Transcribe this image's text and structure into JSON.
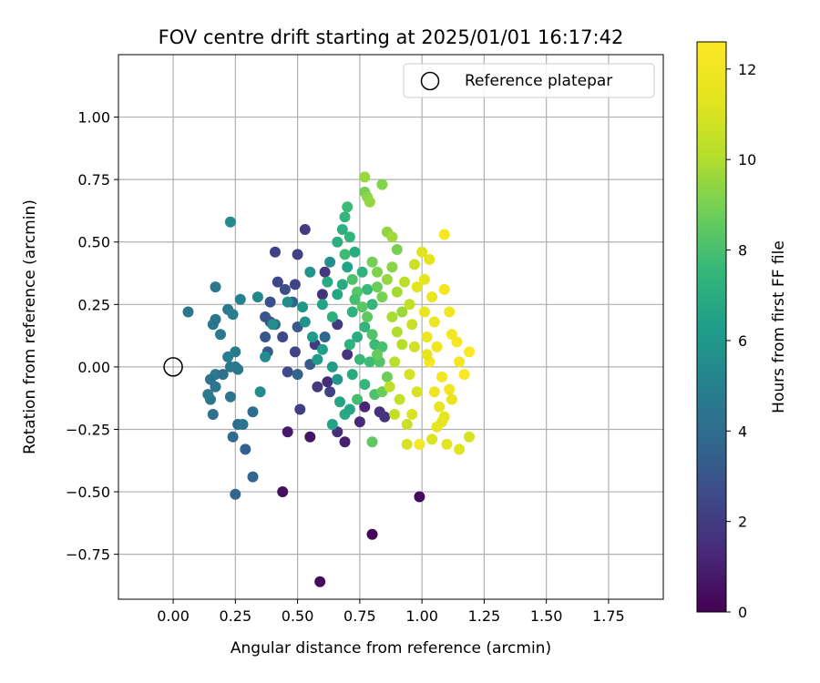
{
  "chart_data": {
    "type": "scatter",
    "title": "FOV centre drift starting at 2025/01/01 16:17:42",
    "xlabel": "Angular distance from reference (arcmin)",
    "ylabel": "Rotation from reference (arcmin)",
    "xlim": [
      -0.22,
      1.97
    ],
    "ylim": [
      -0.93,
      1.25
    ],
    "xticks": [
      "0.00",
      "0.25",
      "0.50",
      "0.75",
      "1.00",
      "1.25",
      "1.50",
      "1.75"
    ],
    "yticks": [
      "−0.75",
      "−0.50",
      "−0.25",
      "0.00",
      "0.25",
      "0.50",
      "0.75",
      "1.00"
    ],
    "xtick_values": [
      0,
      0.25,
      0.5,
      0.75,
      1.0,
      1.25,
      1.5,
      1.75
    ],
    "ytick_values": [
      -0.75,
      -0.5,
      -0.25,
      0,
      0.25,
      0.5,
      0.75,
      1.0
    ],
    "grid": true,
    "legend": {
      "placement": "top-right",
      "entries": [
        "Reference platepar"
      ]
    },
    "reference_point": {
      "x": 0,
      "y": 0,
      "label": "Reference platepar"
    },
    "colorbar": {
      "label": "Hours from first FF file",
      "colormap": "viridis",
      "range": [
        0,
        12.6
      ],
      "ticks": [
        "0",
        "2",
        "4",
        "6",
        "8",
        "10",
        "12"
      ],
      "tick_values": [
        0,
        2,
        4,
        6,
        8,
        10,
        12
      ]
    },
    "series": [
      {
        "points": [
          [
            0.59,
            -0.86,
            0.3
          ],
          [
            0.8,
            -0.67,
            0.2
          ],
          [
            0.44,
            -0.5,
            0.5
          ],
          [
            0.99,
            -0.52,
            0.3
          ],
          [
            0.46,
            -0.26,
            0.8
          ],
          [
            0.55,
            -0.28,
            0.6
          ],
          [
            0.69,
            -0.3,
            1.0
          ],
          [
            0.75,
            -0.22,
            1.3
          ],
          [
            0.66,
            -0.26,
            1.5
          ],
          [
            0.83,
            -0.18,
            1.6
          ],
          [
            0.58,
            -0.08,
            1.9
          ],
          [
            0.62,
            -0.06,
            1.4
          ],
          [
            0.77,
            -0.16,
            1.2
          ],
          [
            0.85,
            -0.2,
            1.7
          ],
          [
            0.51,
            -0.17,
            2.1
          ],
          [
            0.46,
            -0.02,
            2.6
          ],
          [
            0.49,
            0.06,
            2.3
          ],
          [
            0.44,
            0.12,
            2.5
          ],
          [
            0.42,
            0.34,
            2.4
          ],
          [
            0.41,
            0.46,
            2.2
          ],
          [
            0.39,
            0.26,
            2.8
          ],
          [
            0.39,
            0.18,
            2.9
          ],
          [
            0.45,
            0.31,
            2.7
          ],
          [
            0.5,
            0.45,
            2.2
          ],
          [
            0.53,
            0.55,
            2.0
          ],
          [
            0.49,
            0.33,
            2.3
          ],
          [
            0.61,
            0.38,
            1.8
          ],
          [
            0.6,
            0.29,
            1.6
          ],
          [
            0.57,
            0.09,
            2.0
          ],
          [
            0.66,
            0.17,
            1.9
          ],
          [
            0.7,
            0.05,
            1.7
          ],
          [
            0.63,
            -0.1,
            2.2
          ],
          [
            0.37,
            0.12,
            3.1
          ],
          [
            0.38,
            0.06,
            3.3
          ],
          [
            0.37,
            0.2,
            3.0
          ],
          [
            0.41,
            0.17,
            3.6
          ],
          [
            0.5,
            0.16,
            3.2
          ],
          [
            0.48,
            0.26,
            3.5
          ],
          [
            0.5,
            -0.03,
            3.6
          ],
          [
            0.55,
            0.01,
            3.3
          ],
          [
            0.61,
            0.12,
            3.8
          ],
          [
            0.25,
            -0.51,
            3.7
          ],
          [
            0.32,
            -0.44,
            3.8
          ],
          [
            0.29,
            -0.33,
            3.5
          ],
          [
            0.24,
            -0.28,
            3.9
          ],
          [
            0.26,
            -0.23,
            4.0
          ],
          [
            0.28,
            -0.23,
            4.3
          ],
          [
            0.32,
            -0.18,
            4.0
          ],
          [
            0.16,
            -0.19,
            4.2
          ],
          [
            0.23,
            -0.12,
            4.4
          ],
          [
            0.15,
            -0.13,
            4.5
          ],
          [
            0.17,
            -0.08,
            4.4
          ],
          [
            0.14,
            -0.11,
            4.6
          ],
          [
            0.17,
            -0.03,
            4.6
          ],
          [
            0.15,
            -0.05,
            4.3
          ],
          [
            0.2,
            -0.03,
            4.2
          ],
          [
            0.23,
            0.0,
            4.4
          ],
          [
            0.25,
            0.0,
            4.7
          ],
          [
            0.26,
            -0.01,
            4.5
          ],
          [
            0.22,
            0.04,
            4.8
          ],
          [
            0.25,
            0.06,
            4.7
          ],
          [
            0.19,
            0.13,
            4.6
          ],
          [
            0.16,
            0.17,
            4.5
          ],
          [
            0.17,
            0.19,
            4.4
          ],
          [
            0.22,
            0.23,
            4.5
          ],
          [
            0.24,
            0.21,
            4.9
          ],
          [
            0.06,
            0.22,
            4.4
          ],
          [
            0.17,
            0.32,
            4.6
          ],
          [
            0.27,
            0.27,
            5.0
          ],
          [
            0.34,
            0.28,
            5.2
          ],
          [
            0.23,
            0.58,
            5.4
          ],
          [
            0.35,
            -0.1,
            5.4
          ],
          [
            0.37,
            0.04,
            5.5
          ],
          [
            0.4,
            0.17,
            5.6
          ],
          [
            0.46,
            0.26,
            5.5
          ],
          [
            0.53,
            0.18,
            5.8
          ],
          [
            0.56,
            0.12,
            6.1
          ],
          [
            0.52,
            0.24,
            6.0
          ],
          [
            0.55,
            0.38,
            5.9
          ],
          [
            0.63,
            0.42,
            5.6
          ],
          [
            0.58,
            0.03,
            6.2
          ],
          [
            0.6,
            0.07,
            6.4
          ],
          [
            0.64,
            0.0,
            6.2
          ],
          [
            0.66,
            -0.05,
            6.0
          ],
          [
            0.64,
            -0.23,
            6.5
          ],
          [
            0.67,
            -0.14,
            6.6
          ],
          [
            0.69,
            -0.19,
            6.8
          ],
          [
            0.71,
            -0.17,
            6.7
          ],
          [
            0.72,
            -0.03,
            6.9
          ],
          [
            0.74,
            0.12,
            7.0
          ],
          [
            0.72,
            0.22,
            7.2
          ],
          [
            0.66,
            0.29,
            6.7
          ],
          [
            0.68,
            0.33,
            6.8
          ],
          [
            0.7,
            0.4,
            6.5
          ],
          [
            0.73,
            0.46,
            7.0
          ],
          [
            0.76,
            0.38,
            7.3
          ],
          [
            0.78,
            0.31,
            7.6
          ],
          [
            0.8,
            0.25,
            7.5
          ],
          [
            0.77,
            0.16,
            7.4
          ],
          [
            0.81,
            0.09,
            7.7
          ],
          [
            0.79,
            0.02,
            7.8
          ],
          [
            0.77,
            -0.07,
            7.5
          ],
          [
            0.74,
            -0.13,
            7.9
          ],
          [
            0.81,
            -0.11,
            8.1
          ],
          [
            0.83,
            0.02,
            8.2
          ],
          [
            0.84,
            0.08,
            8.0
          ],
          [
            0.66,
            0.5,
            7.1
          ],
          [
            0.68,
            0.55,
            7.2
          ],
          [
            0.69,
            0.6,
            7.5
          ],
          [
            0.7,
            0.64,
            7.7
          ],
          [
            0.71,
            0.52,
            7.4
          ],
          [
            0.69,
            0.45,
            7.8
          ],
          [
            0.72,
            0.35,
            8.1
          ],
          [
            0.74,
            0.3,
            8.3
          ],
          [
            0.76,
            0.24,
            8.4
          ],
          [
            0.78,
            0.2,
            8.5
          ],
          [
            0.8,
            0.13,
            8.2
          ],
          [
            0.82,
            0.05,
            8.6
          ],
          [
            0.86,
            -0.04,
            8.8
          ],
          [
            0.84,
            -0.1,
            8.7
          ],
          [
            0.8,
            -0.3,
            8.5
          ],
          [
            0.77,
            0.7,
            9.0
          ],
          [
            0.78,
            0.68,
            9.3
          ],
          [
            0.79,
            0.66,
            9.5
          ],
          [
            0.77,
            0.76,
            9.6
          ],
          [
            0.84,
            0.73,
            9.2
          ],
          [
            0.86,
            0.54,
            9.4
          ],
          [
            0.88,
            0.52,
            9.7
          ],
          [
            0.8,
            0.42,
            8.9
          ],
          [
            0.82,
            0.38,
            9.1
          ],
          [
            0.88,
            0.4,
            9.3
          ],
          [
            0.86,
            0.35,
            9.5
          ],
          [
            0.9,
            0.3,
            9.8
          ],
          [
            0.88,
            0.2,
            9.9
          ],
          [
            0.9,
            0.14,
            10.0
          ],
          [
            0.92,
            0.09,
            10.1
          ],
          [
            0.89,
            0.02,
            10.2
          ],
          [
            0.87,
            -0.08,
            10.3
          ],
          [
            0.91,
            -0.13,
            10.4
          ],
          [
            0.89,
            -0.19,
            10.5
          ],
          [
            0.94,
            -0.23,
            10.6
          ],
          [
            0.9,
            0.47,
            9.0
          ],
          [
            0.95,
            0.25,
            10.4
          ],
          [
            0.96,
            0.17,
            10.6
          ],
          [
            0.97,
            0.08,
            10.8
          ],
          [
            0.95,
            -0.03,
            10.9
          ],
          [
            0.98,
            -0.1,
            11.0
          ],
          [
            0.96,
            -0.19,
            11.1
          ],
          [
            0.94,
            -0.31,
            11.0
          ],
          [
            1.0,
            0.46,
            11.2
          ],
          [
            1.03,
            0.43,
            11.4
          ],
          [
            1.01,
            0.35,
            11.5
          ],
          [
            0.98,
            0.32,
            11.3
          ],
          [
            1.04,
            0.28,
            11.6
          ],
          [
            1.01,
            0.22,
            11.7
          ],
          [
            1.05,
            0.18,
            11.8
          ],
          [
            1.02,
            0.12,
            11.9
          ],
          [
            1.06,
            0.08,
            12.0
          ],
          [
            1.03,
            0.02,
            12.1
          ],
          [
            1.08,
            -0.04,
            12.2
          ],
          [
            1.05,
            -0.1,
            11.8
          ],
          [
            1.07,
            -0.16,
            11.6
          ],
          [
            1.06,
            -0.24,
            11.5
          ],
          [
            1.08,
            -0.22,
            11.4
          ],
          [
            0.99,
            -0.31,
            12.3
          ],
          [
            1.09,
            0.53,
            12.4
          ],
          [
            1.09,
            0.31,
            12.2
          ],
          [
            1.11,
            0.22,
            12.0
          ],
          [
            1.12,
            0.13,
            12.1
          ],
          [
            1.14,
            0.1,
            12.3
          ],
          [
            1.15,
            0.02,
            12.2
          ],
          [
            1.17,
            -0.03,
            12.4
          ],
          [
            1.11,
            -0.09,
            12.0
          ],
          [
            1.12,
            -0.13,
            11.7
          ],
          [
            1.09,
            -0.2,
            11.5
          ],
          [
            1.15,
            -0.33,
            11.2
          ],
          [
            1.19,
            -0.28,
            11.0
          ],
          [
            1.19,
            0.06,
            12.5
          ],
          [
            1.1,
            -0.31,
            11.3
          ],
          [
            1.04,
            -0.29,
            11.1
          ],
          [
            0.82,
            0.32,
            8.7
          ],
          [
            0.73,
            0.27,
            7.9
          ],
          [
            0.64,
            0.2,
            7.1
          ],
          [
            0.62,
            0.34,
            6.9
          ],
          [
            0.6,
            0.25,
            6.6
          ],
          [
            0.71,
            0.09,
            7.3
          ],
          [
            0.75,
            0.03,
            7.6
          ],
          [
            0.84,
            0.28,
            9.0
          ],
          [
            0.92,
            0.22,
            9.6
          ],
          [
            0.93,
            0.34,
            10.2
          ],
          [
            0.97,
            0.41,
            10.7
          ],
          [
            1.02,
            0.05,
            11.4
          ]
        ]
      }
    ]
  }
}
